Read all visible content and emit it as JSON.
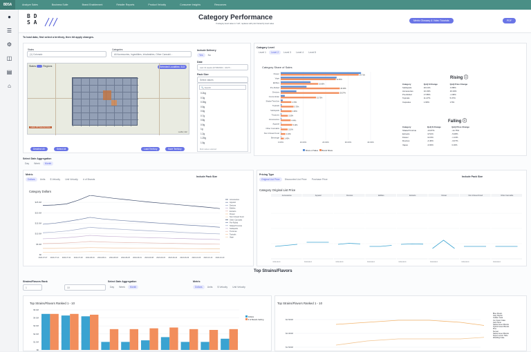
{
  "topnav": {
    "logo": "BDSA",
    "items": [
      "Analyze Sales",
      "Business Suite",
      "Brand Enablement",
      "Retailer Reports",
      "Product Velocity",
      "Consumer Insights",
      "Resources"
    ]
  },
  "header": {
    "brand_lines": [
      "B D",
      "S A"
    ],
    "title": "Category Performance",
    "subtitle": "If category level value is \"null\", replaces with prior hierarchy level value",
    "tutorial_button": "Metric Glossary & Video Tutorials",
    "pdf_button": "PDF"
  },
  "instruction": "To load data, first select a territory, then hit apply changes.",
  "filters": {
    "states_label": "States",
    "states_value": "(1) Colorado",
    "categories_label": "Categories",
    "categories_value": "All Accessories, Ingestibles, Inhaleables, Other Cannabi...",
    "delivery_label": "Include Delivery",
    "delivery_yes": "Yes",
    "delivery_no": "No",
    "date_label": "Date",
    "date_value": "Last 13 weeks (07/28/2024 - 10/27/...",
    "pack_label": "Pack Size",
    "pack_placeholder": "Select values",
    "pack_search": "Search",
    "pack_items": [
      "0.2kg",
      "0.3g",
      "0.35g",
      "0.5g",
      "0.6g",
      "0.7g",
      "0.8g",
      "0.9g",
      "1g",
      "1.2g",
      "1.25g",
      "1.5g"
    ],
    "pack_footer": "Multi values selected"
  },
  "map": {
    "toggle_left": "States",
    "toggle_right": "Regions",
    "selected_badge": "Selected Localities: 313",
    "legend_text": "Latest 4W Selected Area",
    "attribution": "Leaflet | Esri",
    "btn_deselect": "Deselect All",
    "btn_select": "Select All",
    "btn_load": "Load Territory",
    "btn_save": "Save Territory"
  },
  "category_level": {
    "label": "Category Level",
    "levels": [
      "Level 1",
      "Level 2",
      "Level 3",
      "Level 4",
      "Level 5"
    ],
    "active": "Level 2"
  },
  "share_chart": {
    "title": "Category Share of Sales",
    "legend": [
      "Share of Sales",
      "Brand Share"
    ],
    "colors": {
      "share": "#5b8fd6",
      "brand": "#f28e5c"
    }
  },
  "rising": {
    "title": "Rising",
    "headers": [
      "Category",
      "QoQ $ Change",
      "QoQ Price Change"
    ],
    "rows": [
      [
        "Subliquids",
        "26.41%",
        "-5.85%"
      ],
      [
        "Accessories",
        "10.19%",
        "16.34%"
      ],
      [
        "Pre-Rolled",
        "17.85%",
        "-1.06%"
      ],
      [
        "Topicals",
        "11.27%",
        "5.37%"
      ],
      [
        "Capsules",
        "1.99%",
        "1.5%"
      ]
    ]
  },
  "falling": {
    "title": "Falling",
    "headers": [
      "Category",
      "QoQ $ Change",
      "QoQ Price Change"
    ],
    "rows": [
      [
        "Shake/Trim/Lite",
        "-13.87%",
        "-14.75%"
      ],
      [
        "Extracts",
        "-9.51%",
        "-5.08%"
      ],
      [
        "Flower",
        "-9.15%",
        "-1.13%"
      ],
      [
        "Devices",
        "-4.46%",
        "-3.07%"
      ],
      [
        "Vapes",
        "-3.93%",
        "3.16%"
      ]
    ]
  },
  "aggregation": {
    "label": "Select Date Aggregation",
    "options": [
      "Day",
      "Week",
      "Month"
    ],
    "active": "Month"
  },
  "metric_panel": {
    "label": "Metric",
    "options": [
      "Dollars",
      "Units",
      "$ Velocity",
      "Unit Velocity",
      "# of Brands"
    ],
    "active": "Dollars",
    "pack_label": "Include Pack Size",
    "chart_title": "Category Dollars"
  },
  "pricing_panel": {
    "label": "Pricing Type",
    "options": [
      "Original List Price",
      "Discounted List Price",
      "Purchase Price"
    ],
    "active": "Original List Price",
    "pack_label": "Include Pack Size",
    "chart_title": "Category Original List Price"
  },
  "strains": {
    "section_title": "Top Strains/Flavors",
    "rank_label": "Strains/Flavors Rank",
    "rank_from": "1",
    "rank_to": "10",
    "agg_label": "Select Date Aggregation",
    "agg_options": [
      "Day",
      "Week",
      "Month"
    ],
    "agg_active": "Month",
    "metric_label": "Metric",
    "metric_options": [
      "Dollars",
      "Units",
      "$ Velocity",
      "Unit Velocity"
    ],
    "metric_active": "Dollars",
    "bar_title": "Top Strains/Flavors Ranked 1 - 10",
    "bar_legend": [
      "Dollars",
      "# of Brands Selling"
    ],
    "line_title": "Top Strains/Flavors Ranked 1 - 10",
    "line_legend": [
      "Blue Dream",
      "Gary Payton",
      "Golden Goat",
      "Ice Cream Cake",
      "Jack Herer",
      "Sativa Green Blends",
      "Hybrid Green Blends",
      "Pine",
      "Sunset",
      "Sativa Green Blends",
      "Super Lemon Haze",
      "Wedding Cake"
    ],
    "colors": {
      "dollars": "#3aa3d1",
      "brands": "#f28e5c"
    }
  },
  "chart_data": [
    {
      "type": "bar",
      "title": "Category Share of Sales",
      "orientation": "horizontal",
      "categories": [
        "Flower",
        "Vape",
        "Edibles",
        "Pre-Rolled",
        "Devices",
        "Concentrate",
        "Shake/Trim/Lite",
        "Topicals",
        "Subliquids",
        "Tinctures",
        "Accessories",
        "Apparel",
        "Other Cannabis",
        "Non Infused Food",
        "Beverage"
      ],
      "series": [
        {
          "name": "Share of Sales",
          "values": [
            35.75,
            24.88,
            13.28,
            11.49,
            6.98,
            1.8,
            0.9,
            0.4,
            0.4,
            0.3,
            0.3,
            0.2,
            0.1,
            0.05,
            0.03
          ]
        },
        {
          "name": "Brand Share",
          "values": [
            34.71,
            24.5,
            16.66,
            26.29,
            26.07,
            15.73,
            4.73,
            5.73,
            4.9,
            3.2,
            4.44,
            5.1,
            3.1,
            2.1,
            1.4
          ]
        }
      ],
      "xlim": [
        0,
        40
      ],
      "xticks": [
        "0.00%",
        "10.00%",
        "20.00%",
        "30.00%",
        "40.00%"
      ],
      "value_labels": [
        "35.75%",
        "34.71%",
        "24.88%",
        "24.50%",
        "13.28%",
        "16.66%",
        "11.49%",
        "26.29%",
        "6.98%",
        "26.07%",
        "1.80%",
        "15.73%",
        "4.73%",
        "5.73%",
        "4.90%",
        "3.20%",
        "4.44%",
        "5.10%",
        "3.10%",
        "2.10%",
        "1.40%"
      ]
    },
    {
      "type": "line",
      "title": "Category Dollars",
      "x": [
        "2024-07-07",
        "2024-07-14",
        "2024-07-21",
        "2024-07-28",
        "2024-08-04",
        "2024-08-11",
        "2024-08-18",
        "2024-08-25",
        "2024-09-01",
        "2024-09-08",
        "2024-09-15",
        "2024-09-22",
        "2024-09-29",
        "2024-10-06",
        "2024-10-13",
        "2024-10-20"
      ],
      "series": [
        {
          "name": "Accessories",
          "values": [
            23.5,
            23.7,
            24.2,
            26.0,
            28.3,
            27.6,
            26.9,
            26.3,
            25.7,
            25.1,
            24.6,
            24.1,
            23.6,
            23.1,
            22.6,
            22.0
          ]
        },
        {
          "name": "Apparel",
          "values": [
            14.5,
            15.0,
            15.8,
            16.7,
            17.8,
            17.1,
            16.6,
            16.2,
            15.8,
            15.4,
            15.0,
            14.6,
            14.2,
            13.9,
            13.5,
            13.1
          ]
        },
        {
          "name": "Devices",
          "values": [
            10.5,
            10.8,
            11.3,
            12.1,
            13.1,
            12.6,
            12.3,
            12.0,
            11.7,
            11.4,
            11.1,
            10.9,
            10.6,
            10.4,
            10.1,
            9.9
          ]
        },
        {
          "name": "Edibles",
          "values": [
            7.6,
            7.8,
            8.1,
            8.6,
            9.2,
            8.9,
            8.7,
            8.5,
            8.3,
            8.1,
            8.0,
            7.8,
            7.7,
            7.5,
            7.4,
            7.2
          ]
        },
        {
          "name": "Extracts",
          "values": [
            5.3,
            5.4,
            5.6,
            5.9,
            6.3,
            6.1,
            5.9,
            5.8,
            5.7,
            5.6,
            5.5,
            5.4,
            5.3,
            5.2,
            5.1,
            5.0
          ]
        },
        {
          "name": "Flower",
          "values": [
            3.0,
            3.0,
            3.1,
            3.2,
            3.4,
            3.3,
            3.2,
            3.2,
            3.1,
            3.1,
            3.0,
            3.0,
            2.9,
            2.9,
            2.8,
            2.8
          ]
        },
        {
          "name": "Non Infused Food",
          "values": [
            1.2,
            1.2,
            1.3,
            1.3,
            1.4,
            1.4,
            1.3,
            1.3,
            1.3,
            1.3,
            1.2,
            1.2,
            1.2,
            1.2,
            1.2,
            1.1
          ]
        }
      ],
      "ylim": [
        0,
        27
      ],
      "yticks": [
        "$0",
        "$5.0M",
        "$10.0M",
        "$15.0M",
        "$20.0M",
        "$25.0M"
      ],
      "legend": [
        "Accessories",
        "Apparel",
        "Devices",
        "Edibles",
        "Extracts",
        "Flower",
        "Non Infused Food",
        "Other Cannabis",
        "Pre-Rolled",
        "Shake/Trim/Lite",
        "Subliquids",
        "Tinctures",
        "Topicals",
        "Vape"
      ]
    },
    {
      "type": "line",
      "title": "Category Original List Price",
      "facets": [
        "Accessories",
        "Apparel",
        "Devices",
        "Edibles",
        "Extracts",
        "Flower",
        "Non Infused Food",
        "Other Cannabis"
      ],
      "facet_x": [
        "2024-08-01",
        "2024-09-01",
        "2024-10-01"
      ],
      "series": [
        {
          "name": "Accessories",
          "values": [
            4,
            4.5,
            5
          ]
        },
        {
          "name": "Apparel",
          "values": [
            6,
            6,
            6
          ]
        },
        {
          "name": "Devices",
          "values": [
            5,
            5.5,
            5.2
          ]
        },
        {
          "name": "Edibles",
          "values": [
            4,
            4,
            4.5
          ]
        },
        {
          "name": "Extracts",
          "values": [
            5,
            5.2,
            5.1
          ]
        },
        {
          "name": "Flower",
          "values": [
            3,
            7,
            3
          ]
        },
        {
          "name": "Non Infused Food",
          "values": [
            4,
            4,
            4
          ]
        },
        {
          "name": "Other Cannabis",
          "values": [
            4,
            4,
            4
          ]
        }
      ]
    },
    {
      "type": "bar",
      "title": "Top Strains/Flavors Ranked 1 - 10",
      "categories": [
        "1",
        "2",
        "3",
        "4",
        "5",
        "6",
        "7",
        "8",
        "9",
        "10"
      ],
      "series": [
        {
          "name": "Dollars",
          "values": [
            4.5,
            4.3,
            4.2,
            1.0,
            1.0,
            1.2,
            1.6,
            1.0,
            1.0,
            1.4
          ]
        },
        {
          "name": "# of Brands Selling",
          "values": [
            4.5,
            4.5,
            4.4,
            2.6,
            2.6,
            2.7,
            2.8,
            2.6,
            2.5,
            2.6
          ]
        }
      ],
      "ylim": [
        0,
        5
      ],
      "yticks": [
        "$0",
        "$1.0M",
        "$2.0M",
        "$3.0M",
        "$4.0M",
        "$5.0M"
      ]
    },
    {
      "type": "line",
      "title": "Top Strains/Flavors Ranked 1 - 10",
      "yticks": [
        "$2.500M",
        "$2.000M",
        "$1.500M"
      ],
      "series": [
        {
          "name": "Blue Dream",
          "values": [
            2.1,
            2.2,
            2.3,
            2.3,
            2.2,
            2.0
          ]
        },
        {
          "name": "Gary Payton",
          "values": [
            1.1,
            1.3,
            1.4,
            1.4,
            1.4,
            1.5
          ]
        }
      ]
    }
  ]
}
